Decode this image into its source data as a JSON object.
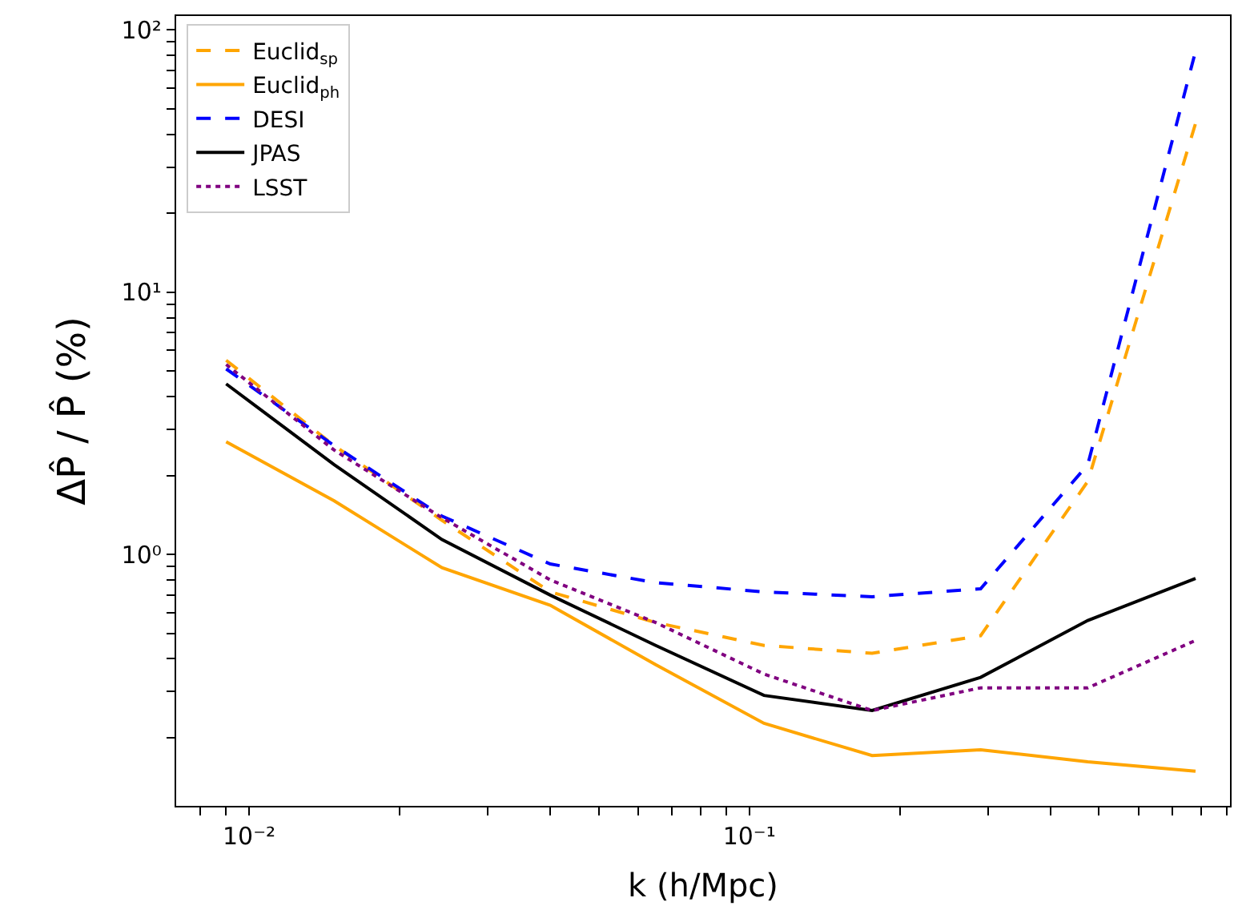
{
  "chart_data": {
    "type": "line",
    "xlabel": "k (h/Mpc)",
    "ylabel": "ΔP̂ / P̂ (%)",
    "log": "xy",
    "legend": "top left",
    "x": [
      0.009,
      0.0148,
      0.0243,
      0.04,
      0.065,
      0.107,
      0.176,
      0.29,
      0.475,
      0.78
    ],
    "xlim": [
      0.00715,
      0.914
    ],
    "xticks": [
      {
        "value": 0.008,
        "label": null
      },
      {
        "value": 0.009,
        "label": null
      },
      {
        "value": 0.01,
        "label": "10⁻²"
      },
      {
        "value": 0.02,
        "label": null
      },
      {
        "value": 0.03,
        "label": null
      },
      {
        "value": 0.04,
        "label": null
      },
      {
        "value": 0.05,
        "label": null
      },
      {
        "value": 0.06,
        "label": null
      },
      {
        "value": 0.07,
        "label": null
      },
      {
        "value": 0.08,
        "label": null
      },
      {
        "value": 0.09,
        "label": null
      },
      {
        "value": 0.1,
        "label": "10⁻¹"
      },
      {
        "value": 0.2,
        "label": null
      },
      {
        "value": 0.3,
        "label": null
      },
      {
        "value": 0.4,
        "label": null
      },
      {
        "value": 0.5,
        "label": null
      },
      {
        "value": 0.6,
        "label": null
      },
      {
        "value": 0.7,
        "label": null
      },
      {
        "value": 0.8,
        "label": null
      },
      {
        "value": 0.9,
        "label": null
      }
    ],
    "ylim": [
      0.11,
      113
    ],
    "yticks": [
      {
        "value": 0.2,
        "label": null
      },
      {
        "value": 0.3,
        "label": null
      },
      {
        "value": 0.4,
        "label": null
      },
      {
        "value": 0.5,
        "label": null
      },
      {
        "value": 0.6,
        "label": null
      },
      {
        "value": 0.7,
        "label": null
      },
      {
        "value": 0.8,
        "label": null
      },
      {
        "value": 0.9,
        "label": null
      },
      {
        "value": 1,
        "label": "10⁰"
      },
      {
        "value": 2,
        "label": null
      },
      {
        "value": 3,
        "label": null
      },
      {
        "value": 4,
        "label": null
      },
      {
        "value": 5,
        "label": null
      },
      {
        "value": 6,
        "label": null
      },
      {
        "value": 7,
        "label": null
      },
      {
        "value": 8,
        "label": null
      },
      {
        "value": 9,
        "label": null
      },
      {
        "value": 10,
        "label": "10¹"
      },
      {
        "value": 20,
        "label": null
      },
      {
        "value": 30,
        "label": null
      },
      {
        "value": 40,
        "label": null
      },
      {
        "value": 50,
        "label": null
      },
      {
        "value": 60,
        "label": null
      },
      {
        "value": 70,
        "label": null
      },
      {
        "value": 80,
        "label": null
      },
      {
        "value": 90,
        "label": null
      },
      {
        "value": 100,
        "label": "10²"
      }
    ],
    "series": [
      {
        "name": "Euclid$_{sp}$",
        "color": "#ffa500",
        "line_style": "dashed",
        "values": [
          5.5,
          2.6,
          1.35,
          0.72,
          0.55,
          0.45,
          0.42,
          0.49,
          1.9,
          44
        ]
      },
      {
        "name": "Euclid$_{ph}$",
        "color": "#ffa500",
        "line_style": "solid",
        "values": [
          2.69,
          1.6,
          0.89,
          0.64,
          0.38,
          0.227,
          0.171,
          0.18,
          0.162,
          0.149
        ]
      },
      {
        "name": "DESI",
        "color": "#0000ff",
        "line_style": "dashed",
        "values": [
          5.1,
          2.6,
          1.4,
          0.92,
          0.78,
          0.72,
          0.69,
          0.74,
          2.2,
          83
        ]
      },
      {
        "name": "JPAS",
        "color": "#000000",
        "line_style": "solid",
        "values": [
          4.47,
          2.2,
          1.14,
          0.7,
          0.45,
          0.29,
          0.254,
          0.34,
          0.56,
          0.81
        ]
      },
      {
        "name": "LSST",
        "color": "#800080",
        "line_style": "dotted",
        "values": [
          5.3,
          2.5,
          1.38,
          0.8,
          0.55,
          0.35,
          0.254,
          0.31,
          0.31,
          0.47
        ]
      }
    ]
  }
}
